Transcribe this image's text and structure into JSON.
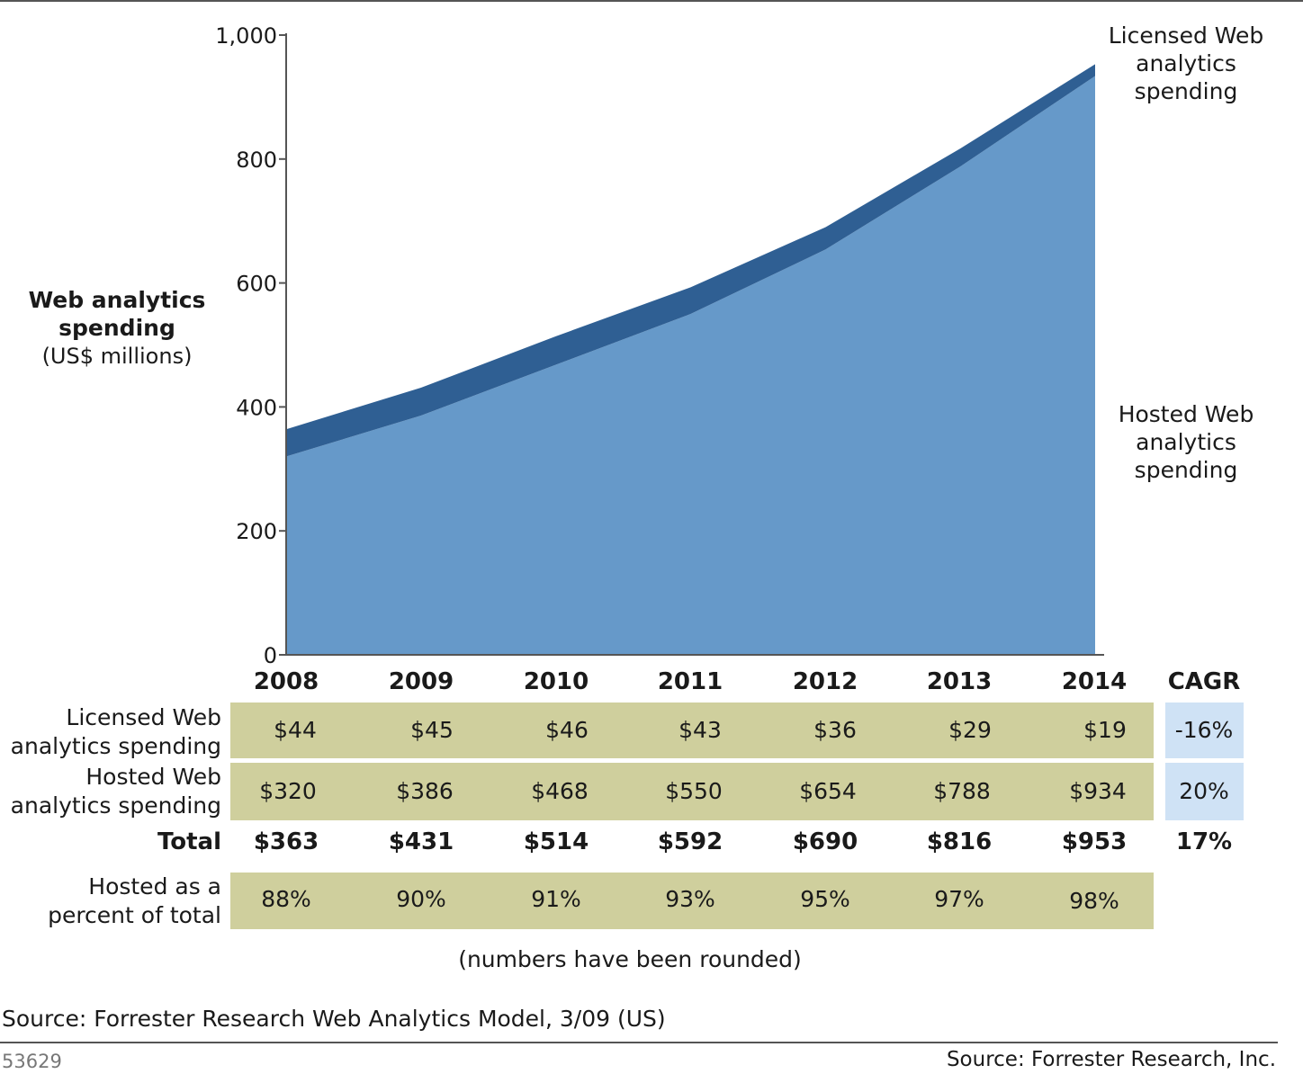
{
  "chart_data": {
    "type": "area",
    "stacked": true,
    "x": [
      "2008",
      "2009",
      "2010",
      "2011",
      "2012",
      "2013",
      "2014"
    ],
    "series": [
      {
        "name": "Hosted Web analytics spending",
        "values": [
          320,
          386,
          468,
          550,
          654,
          788,
          934
        ],
        "color": "#6699c9"
      },
      {
        "name": "Licensed Web analytics spending",
        "values": [
          44,
          45,
          46,
          43,
          36,
          29,
          19
        ],
        "color": "#2f5f93"
      }
    ],
    "ylim": [
      0,
      1000
    ],
    "yticks": [
      "0",
      "200",
      "400",
      "600",
      "800",
      "1,000"
    ],
    "ylabel": {
      "line1": "Web analytics",
      "line2": "spending",
      "line3": "(US$ millions)"
    },
    "series_labels": {
      "licensed": "Licensed Web\nanalytics\nspending",
      "hosted": "Hosted Web\nanalytics\nspending"
    },
    "grid": false,
    "table": {
      "cagr_header": "CAGR",
      "rows": [
        {
          "label": "Licensed Web\nanalytics spending",
          "values": [
            "$44",
            "$45",
            "$46",
            "$43",
            "$36",
            "$29",
            "$19"
          ],
          "cagr": "-16%"
        },
        {
          "label": "Hosted Web\nanalytics spending",
          "values": [
            "$320",
            "$386",
            "$468",
            "$550",
            "$654",
            "$788",
            "$934"
          ],
          "cagr": "20%"
        },
        {
          "label": "Total",
          "values": [
            "$363",
            "$431",
            "$514",
            "$592",
            "$690",
            "$816",
            "$953"
          ],
          "cagr": "17%"
        },
        {
          "label": "Hosted as a\npercent of total",
          "values": [
            "88%",
            "90%",
            "91%",
            "93%",
            "95%",
            "97%",
            "98%"
          ]
        }
      ]
    },
    "note": "(numbers have been rounded)",
    "source": "Source: Forrester Research Web Analytics Model, 3/09 (US)"
  },
  "footer": {
    "figure_id": "53629",
    "credit": "Source: Forrester Research, Inc."
  },
  "colors": {
    "table_band": "#cfcf9d",
    "cagr_band": "#cfe2f5"
  }
}
